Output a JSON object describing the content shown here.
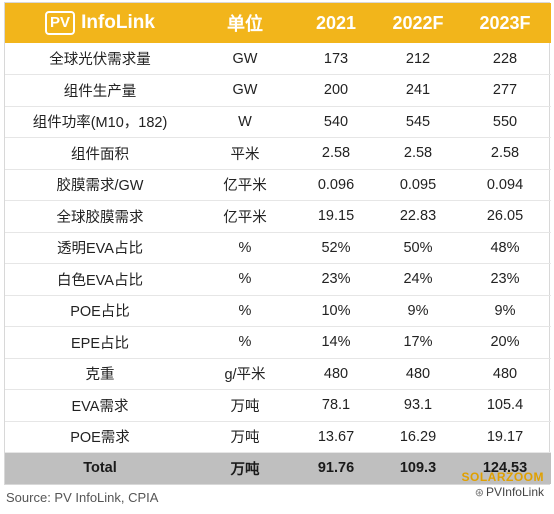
{
  "header": {
    "logo_badge": "PV",
    "logo_text": "InfoLink",
    "columns": [
      "单位",
      "2021",
      "2022F",
      "2023F"
    ]
  },
  "rows": [
    {
      "label": "全球光伏需求量",
      "unit": "GW",
      "v2021": "173",
      "v2022": "212",
      "v2023": "228"
    },
    {
      "label": "组件生产量",
      "unit": "GW",
      "v2021": "200",
      "v2022": "241",
      "v2023": "277"
    },
    {
      "label": "组件功率(M10，182)",
      "unit": "W",
      "v2021": "540",
      "v2022": "545",
      "v2023": "550"
    },
    {
      "label": "组件面积",
      "unit": "平米",
      "v2021": "2.58",
      "v2022": "2.58",
      "v2023": "2.58"
    },
    {
      "label": "胶膜需求/GW",
      "unit": "亿平米",
      "v2021": "0.096",
      "v2022": "0.095",
      "v2023": "0.094"
    },
    {
      "label": "全球胶膜需求",
      "unit": "亿平米",
      "v2021": "19.15",
      "v2022": "22.83",
      "v2023": "26.05"
    },
    {
      "label": "透明EVA占比",
      "unit": "%",
      "v2021": "52%",
      "v2022": "50%",
      "v2023": "48%"
    },
    {
      "label": "白色EVA占比",
      "unit": "%",
      "v2021": "23%",
      "v2022": "24%",
      "v2023": "23%"
    },
    {
      "label": "POE占比",
      "unit": "%",
      "v2021": "10%",
      "v2022": "9%",
      "v2023": "9%"
    },
    {
      "label": "EPE占比",
      "unit": "%",
      "v2021": "14%",
      "v2022": "17%",
      "v2023": "20%"
    },
    {
      "label": "克重",
      "unit": "g/平米",
      "v2021": "480",
      "v2022": "480",
      "v2023": "480"
    },
    {
      "label": "EVA需求",
      "unit": "万吨",
      "v2021": "78.1",
      "v2022": "93.1",
      "v2023": "105.4"
    },
    {
      "label": "POE需求",
      "unit": "万吨",
      "v2021": "13.67",
      "v2022": "16.29",
      "v2023": "19.17"
    }
  ],
  "total": {
    "label": "Total",
    "unit": "万吨",
    "v2021": "91.76",
    "v2022": "109.3",
    "v2023": "124.53"
  },
  "source": "Source: PV InfoLink, CPIA",
  "watermark": {
    "top": "SOLARZOOM",
    "bottom": "PVInfoLink"
  },
  "colors": {
    "header_bg": "#f2b51b",
    "total_bg": "#bfbfbf"
  }
}
